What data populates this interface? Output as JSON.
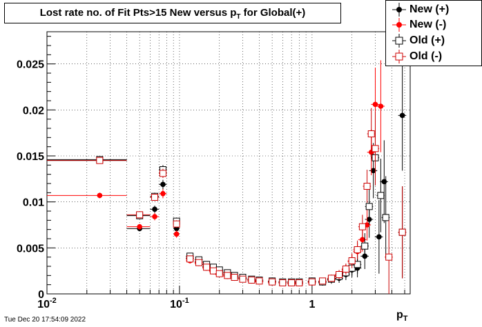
{
  "chart_data": {
    "type": "scatter",
    "title_main": "Lost rate no. of Fit Pts>15 New versus p",
    "title_sub": "T",
    "title_tail": " for Global(+)",
    "xlabel_main": "p",
    "xlabel_sub": "T",
    "ylabel": "",
    "xscale": "log",
    "xlim": [
      0.01,
      5.5
    ],
    "ylim": [
      0,
      0.0285
    ],
    "grid": true,
    "legend_position": "top-right",
    "x_ticks": [
      "10^-2",
      "10^-1",
      "1"
    ],
    "y_ticks": [
      "0",
      "0.005",
      "0.01",
      "0.015",
      "0.02",
      "0.025"
    ],
    "series": [
      {
        "name": "New (+)",
        "color": "#000000",
        "marker": "filled-circle",
        "points": [
          {
            "x": 0.025,
            "y": 0.0145,
            "xlo": 0.01,
            "xhi": 0.04,
            "err": 0.0003
          },
          {
            "x": 0.05,
            "y": 0.0071,
            "xlo": 0.04,
            "xhi": 0.06,
            "err": 0.0003
          },
          {
            "x": 0.065,
            "y": 0.0092,
            "xlo": 0.06,
            "xhi": 0.07,
            "err": 0.0004
          },
          {
            "x": 0.075,
            "y": 0.0119,
            "xlo": 0.07,
            "xhi": 0.08,
            "err": 0.0005
          },
          {
            "x": 0.095,
            "y": 0.0071,
            "xlo": 0.09,
            "xhi": 0.1,
            "err": 0.0004
          },
          {
            "x": 0.12,
            "y": 0.0039,
            "err": 0.0002
          },
          {
            "x": 0.14,
            "y": 0.0035,
            "err": 0.0002
          },
          {
            "x": 0.16,
            "y": 0.003,
            "err": 0.0002
          },
          {
            "x": 0.18,
            "y": 0.0027,
            "err": 0.0002
          },
          {
            "x": 0.2,
            "y": 0.0024,
            "err": 0.0002
          },
          {
            "x": 0.23,
            "y": 0.0021,
            "err": 0.0002
          },
          {
            "x": 0.26,
            "y": 0.0019,
            "err": 0.0002
          },
          {
            "x": 0.3,
            "y": 0.0017,
            "err": 0.0002
          },
          {
            "x": 0.35,
            "y": 0.0015,
            "err": 0.0002
          },
          {
            "x": 0.4,
            "y": 0.0014,
            "err": 0.0002
          },
          {
            "x": 0.5,
            "y": 0.0013,
            "err": 0.0002
          },
          {
            "x": 0.6,
            "y": 0.0012,
            "err": 0.0002
          },
          {
            "x": 0.7,
            "y": 0.0012,
            "err": 0.0002
          },
          {
            "x": 0.8,
            "y": 0.0012,
            "err": 0.0002
          },
          {
            "x": 1.0,
            "y": 0.0013,
            "err": 0.0003
          },
          {
            "x": 1.2,
            "y": 0.0012,
            "err": 0.0003
          },
          {
            "x": 1.4,
            "y": 0.0015,
            "err": 0.0004
          },
          {
            "x": 1.6,
            "y": 0.0017,
            "err": 0.0005
          },
          {
            "x": 1.8,
            "y": 0.0021,
            "err": 0.0006
          },
          {
            "x": 2.0,
            "y": 0.0026,
            "err": 0.0008
          },
          {
            "x": 2.2,
            "y": 0.0028,
            "err": 0.001
          },
          {
            "x": 2.5,
            "y": 0.0041,
            "err": 0.0014
          },
          {
            "x": 2.7,
            "y": 0.0081,
            "err": 0.002
          },
          {
            "x": 2.9,
            "y": 0.0134,
            "err": 0.003
          },
          {
            "x": 3.2,
            "y": 0.0062,
            "err": 0.004
          },
          {
            "x": 3.5,
            "y": 0.0122,
            "err": 0.0045
          },
          {
            "x": 4.8,
            "y": 0.0194,
            "err": 0.006
          }
        ]
      },
      {
        "name": "New (-)",
        "color": "#ff0000",
        "marker": "filled-circle",
        "points": [
          {
            "x": 0.025,
            "y": 0.0107,
            "xlo": 0.01,
            "xhi": 0.04,
            "err": 0.0003
          },
          {
            "x": 0.05,
            "y": 0.0073,
            "xlo": 0.04,
            "xhi": 0.06,
            "err": 0.0003
          },
          {
            "x": 0.065,
            "y": 0.0084,
            "xlo": 0.06,
            "xhi": 0.07,
            "err": 0.0004
          },
          {
            "x": 0.075,
            "y": 0.0109,
            "xlo": 0.07,
            "xhi": 0.08,
            "err": 0.0005
          },
          {
            "x": 0.095,
            "y": 0.0065,
            "xlo": 0.09,
            "xhi": 0.1,
            "err": 0.0004
          },
          {
            "x": 0.12,
            "y": 0.0036,
            "err": 0.0002
          },
          {
            "x": 0.14,
            "y": 0.0033,
            "err": 0.0002
          },
          {
            "x": 0.16,
            "y": 0.0028,
            "err": 0.0002
          },
          {
            "x": 0.18,
            "y": 0.0024,
            "err": 0.0002
          },
          {
            "x": 0.2,
            "y": 0.0021,
            "err": 0.0002
          },
          {
            "x": 0.23,
            "y": 0.0019,
            "err": 0.0002
          },
          {
            "x": 0.26,
            "y": 0.0017,
            "err": 0.0002
          },
          {
            "x": 0.3,
            "y": 0.0016,
            "err": 0.0002
          },
          {
            "x": 0.35,
            "y": 0.0014,
            "err": 0.0002
          },
          {
            "x": 0.4,
            "y": 0.0013,
            "err": 0.0002
          },
          {
            "x": 0.5,
            "y": 0.0012,
            "err": 0.0002
          },
          {
            "x": 0.6,
            "y": 0.0012,
            "err": 0.0002
          },
          {
            "x": 0.7,
            "y": 0.0011,
            "err": 0.0002
          },
          {
            "x": 0.8,
            "y": 0.0011,
            "err": 0.0002
          },
          {
            "x": 1.0,
            "y": 0.0012,
            "err": 0.0003
          },
          {
            "x": 1.2,
            "y": 0.0013,
            "err": 0.0003
          },
          {
            "x": 1.4,
            "y": 0.0016,
            "err": 0.0004
          },
          {
            "x": 1.6,
            "y": 0.002,
            "err": 0.0005
          },
          {
            "x": 1.8,
            "y": 0.0026,
            "err": 0.0006
          },
          {
            "x": 2.0,
            "y": 0.0035,
            "err": 0.0008
          },
          {
            "x": 2.2,
            "y": 0.0046,
            "err": 0.001
          },
          {
            "x": 2.4,
            "y": 0.0059,
            "err": 0.0013
          },
          {
            "x": 2.6,
            "y": 0.0075,
            "err": 0.0017
          },
          {
            "x": 2.8,
            "y": 0.0154,
            "err": 0.0025
          },
          {
            "x": 3.0,
            "y": 0.0206,
            "err": 0.004
          },
          {
            "x": 3.3,
            "y": 0.0204,
            "err": 0.005
          }
        ]
      },
      {
        "name": "Old (+)",
        "color": "#000000",
        "marker": "open-square",
        "points": [
          {
            "x": 0.025,
            "y": 0.0146,
            "xlo": 0.01,
            "xhi": 0.04,
            "err": 0.0003
          },
          {
            "x": 0.05,
            "y": 0.0085,
            "xlo": 0.04,
            "xhi": 0.06,
            "err": 0.0003
          },
          {
            "x": 0.065,
            "y": 0.0106,
            "xlo": 0.06,
            "xhi": 0.07,
            "err": 0.0004
          },
          {
            "x": 0.075,
            "y": 0.0135,
            "xlo": 0.07,
            "xhi": 0.08,
            "err": 0.0005
          },
          {
            "x": 0.095,
            "y": 0.0079,
            "xlo": 0.09,
            "xhi": 0.1,
            "err": 0.0004
          },
          {
            "x": 0.12,
            "y": 0.0041,
            "err": 0.0002
          },
          {
            "x": 0.14,
            "y": 0.0037,
            "err": 0.0002
          },
          {
            "x": 0.16,
            "y": 0.0032,
            "err": 0.0002
          },
          {
            "x": 0.18,
            "y": 0.0029,
            "err": 0.0002
          },
          {
            "x": 0.2,
            "y": 0.0026,
            "err": 0.0002
          },
          {
            "x": 0.23,
            "y": 0.0023,
            "err": 0.0002
          },
          {
            "x": 0.26,
            "y": 0.002,
            "err": 0.0002
          },
          {
            "x": 0.3,
            "y": 0.0018,
            "err": 0.0002
          },
          {
            "x": 0.35,
            "y": 0.0016,
            "err": 0.0002
          },
          {
            "x": 0.4,
            "y": 0.0015,
            "err": 0.0002
          },
          {
            "x": 0.5,
            "y": 0.0014,
            "err": 0.0002
          },
          {
            "x": 0.6,
            "y": 0.0013,
            "err": 0.0002
          },
          {
            "x": 0.7,
            "y": 0.0013,
            "err": 0.0002
          },
          {
            "x": 0.8,
            "y": 0.0013,
            "err": 0.0002
          },
          {
            "x": 1.0,
            "y": 0.0014,
            "err": 0.0003
          },
          {
            "x": 1.2,
            "y": 0.0013,
            "err": 0.0003
          },
          {
            "x": 1.4,
            "y": 0.0016,
            "err": 0.0004
          },
          {
            "x": 1.6,
            "y": 0.0019,
            "err": 0.0005
          },
          {
            "x": 1.8,
            "y": 0.0023,
            "err": 0.0006
          },
          {
            "x": 2.0,
            "y": 0.0028,
            "err": 0.0008
          },
          {
            "x": 2.2,
            "y": 0.0032,
            "err": 0.001
          },
          {
            "x": 2.5,
            "y": 0.0052,
            "err": 0.0014
          },
          {
            "x": 2.7,
            "y": 0.0095,
            "err": 0.002
          },
          {
            "x": 3.0,
            "y": 0.0148,
            "err": 0.003
          },
          {
            "x": 3.3,
            "y": 0.0107,
            "err": 0.004
          },
          {
            "x": 3.6,
            "y": 0.0083,
            "err": 0.0045
          },
          {
            "x": 4.8,
            "y": 0.0067,
            "err": 0.005
          }
        ]
      },
      {
        "name": "Old (-)",
        "color": "#cc0000",
        "marker": "open-square",
        "points": [
          {
            "x": 0.025,
            "y": 0.0145,
            "xlo": 0.01,
            "xhi": 0.04,
            "err": 0.0003
          },
          {
            "x": 0.05,
            "y": 0.0086,
            "xlo": 0.04,
            "xhi": 0.06,
            "err": 0.0003
          },
          {
            "x": 0.065,
            "y": 0.0105,
            "xlo": 0.06,
            "xhi": 0.07,
            "err": 0.0004
          },
          {
            "x": 0.075,
            "y": 0.0131,
            "xlo": 0.07,
            "xhi": 0.08,
            "err": 0.0005
          },
          {
            "x": 0.095,
            "y": 0.0076,
            "xlo": 0.09,
            "xhi": 0.1,
            "err": 0.0004
          },
          {
            "x": 0.12,
            "y": 0.0038,
            "err": 0.0002
          },
          {
            "x": 0.14,
            "y": 0.0034,
            "err": 0.0002
          },
          {
            "x": 0.16,
            "y": 0.0029,
            "err": 0.0002
          },
          {
            "x": 0.18,
            "y": 0.0025,
            "err": 0.0002
          },
          {
            "x": 0.2,
            "y": 0.0022,
            "err": 0.0002
          },
          {
            "x": 0.23,
            "y": 0.002,
            "err": 0.0002
          },
          {
            "x": 0.26,
            "y": 0.0018,
            "err": 0.0002
          },
          {
            "x": 0.3,
            "y": 0.0016,
            "err": 0.0002
          },
          {
            "x": 0.35,
            "y": 0.0015,
            "err": 0.0002
          },
          {
            "x": 0.4,
            "y": 0.0014,
            "err": 0.0002
          },
          {
            "x": 0.5,
            "y": 0.0013,
            "err": 0.0002
          },
          {
            "x": 0.6,
            "y": 0.0012,
            "err": 0.0002
          },
          {
            "x": 0.7,
            "y": 0.0012,
            "err": 0.0002
          },
          {
            "x": 0.8,
            "y": 0.0012,
            "err": 0.0002
          },
          {
            "x": 1.0,
            "y": 0.0013,
            "err": 0.0003
          },
          {
            "x": 1.2,
            "y": 0.0014,
            "err": 0.0003
          },
          {
            "x": 1.4,
            "y": 0.0017,
            "err": 0.0004
          },
          {
            "x": 1.6,
            "y": 0.0021,
            "err": 0.0005
          },
          {
            "x": 1.8,
            "y": 0.0027,
            "err": 0.0006
          },
          {
            "x": 2.0,
            "y": 0.0036,
            "err": 0.0008
          },
          {
            "x": 2.2,
            "y": 0.0048,
            "err": 0.001
          },
          {
            "x": 2.4,
            "y": 0.0073,
            "err": 0.0013
          },
          {
            "x": 2.6,
            "y": 0.0117,
            "err": 0.0018
          },
          {
            "x": 2.8,
            "y": 0.0174,
            "err": 0.0028
          },
          {
            "x": 3.0,
            "y": 0.0158,
            "err": 0.004
          },
          {
            "x": 3.8,
            "y": 0.004,
            "err": 0.004
          },
          {
            "x": 4.8,
            "y": 0.0067,
            "err": 0.005
          }
        ]
      }
    ]
  },
  "footer": {
    "timestamp": "Tue Dec 20 17:54:09 2022"
  }
}
